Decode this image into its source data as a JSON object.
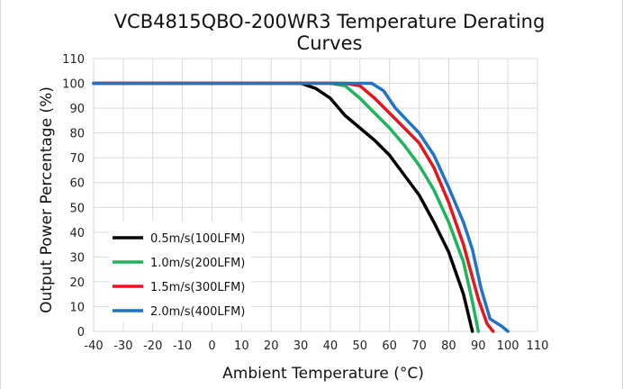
{
  "chart_data": {
    "type": "line",
    "title": "VCB4815QBO-200WR3 Temperature Derating Curves",
    "title_lines": [
      "VCB4815QBO-200WR3 Temperature Derating",
      "Curves"
    ],
    "xlabel": "Ambient Temperature (°C)",
    "ylabel": "Output Power Percentage (%)",
    "xlim": [
      -40,
      110
    ],
    "ylim": [
      0,
      110
    ],
    "xticks": [
      -40,
      -30,
      -20,
      -10,
      0,
      10,
      20,
      30,
      40,
      50,
      60,
      70,
      80,
      90,
      100,
      110
    ],
    "yticks": [
      0,
      10,
      20,
      30,
      40,
      50,
      60,
      70,
      80,
      90,
      100,
      110
    ],
    "x_tick_labels": [
      "-40",
      "-30",
      "-20",
      "-10",
      "0",
      "10",
      "20",
      "30",
      "40",
      "50",
      "60",
      "70",
      "80",
      "90",
      "100",
      "110"
    ],
    "y_tick_labels": [
      "0",
      "10",
      "20",
      "30",
      "40",
      "50",
      "60",
      "70",
      "80",
      "90",
      "100",
      "110"
    ],
    "grid": true,
    "legend_position": "lower-left",
    "series": [
      {
        "name": "0.5m/s(100LFM)",
        "color": "#000000",
        "points": [
          [
            -40,
            100
          ],
          [
            30,
            100
          ],
          [
            35,
            98
          ],
          [
            40,
            94
          ],
          [
            45,
            87
          ],
          [
            50,
            82
          ],
          [
            55,
            77
          ],
          [
            60,
            71
          ],
          [
            65,
            63
          ],
          [
            70,
            55
          ],
          [
            75,
            44
          ],
          [
            80,
            32
          ],
          [
            85,
            15
          ],
          [
            88,
            0
          ]
        ]
      },
      {
        "name": "1.0m/s(200LFM)",
        "color": "#1db55a",
        "points": [
          [
            -40,
            100
          ],
          [
            40,
            100
          ],
          [
            45,
            99
          ],
          [
            50,
            94
          ],
          [
            55,
            88
          ],
          [
            60,
            82
          ],
          [
            65,
            75
          ],
          [
            70,
            67
          ],
          [
            75,
            57
          ],
          [
            80,
            44
          ],
          [
            85,
            28
          ],
          [
            88,
            12
          ],
          [
            90,
            0
          ]
        ]
      },
      {
        "name": "1.5m/s(300LFM)",
        "color": "#e8141b",
        "points": [
          [
            -40,
            100
          ],
          [
            45,
            100
          ],
          [
            50,
            99
          ],
          [
            55,
            94
          ],
          [
            60,
            88
          ],
          [
            65,
            82
          ],
          [
            70,
            76
          ],
          [
            75,
            66
          ],
          [
            80,
            52
          ],
          [
            85,
            35
          ],
          [
            90,
            13
          ],
          [
            93,
            3
          ],
          [
            95,
            0
          ]
        ]
      },
      {
        "name": "2.0m/s(400LFM)",
        "color": "#1e74c8",
        "points": [
          [
            -40,
            100
          ],
          [
            50,
            100
          ],
          [
            54,
            100
          ],
          [
            58,
            97
          ],
          [
            62,
            90
          ],
          [
            66,
            85
          ],
          [
            70,
            80
          ],
          [
            75,
            71
          ],
          [
            80,
            58
          ],
          [
            85,
            44
          ],
          [
            88,
            33
          ],
          [
            91,
            17
          ],
          [
            94,
            5
          ],
          [
            98,
            2
          ],
          [
            100,
            0
          ]
        ]
      }
    ]
  }
}
